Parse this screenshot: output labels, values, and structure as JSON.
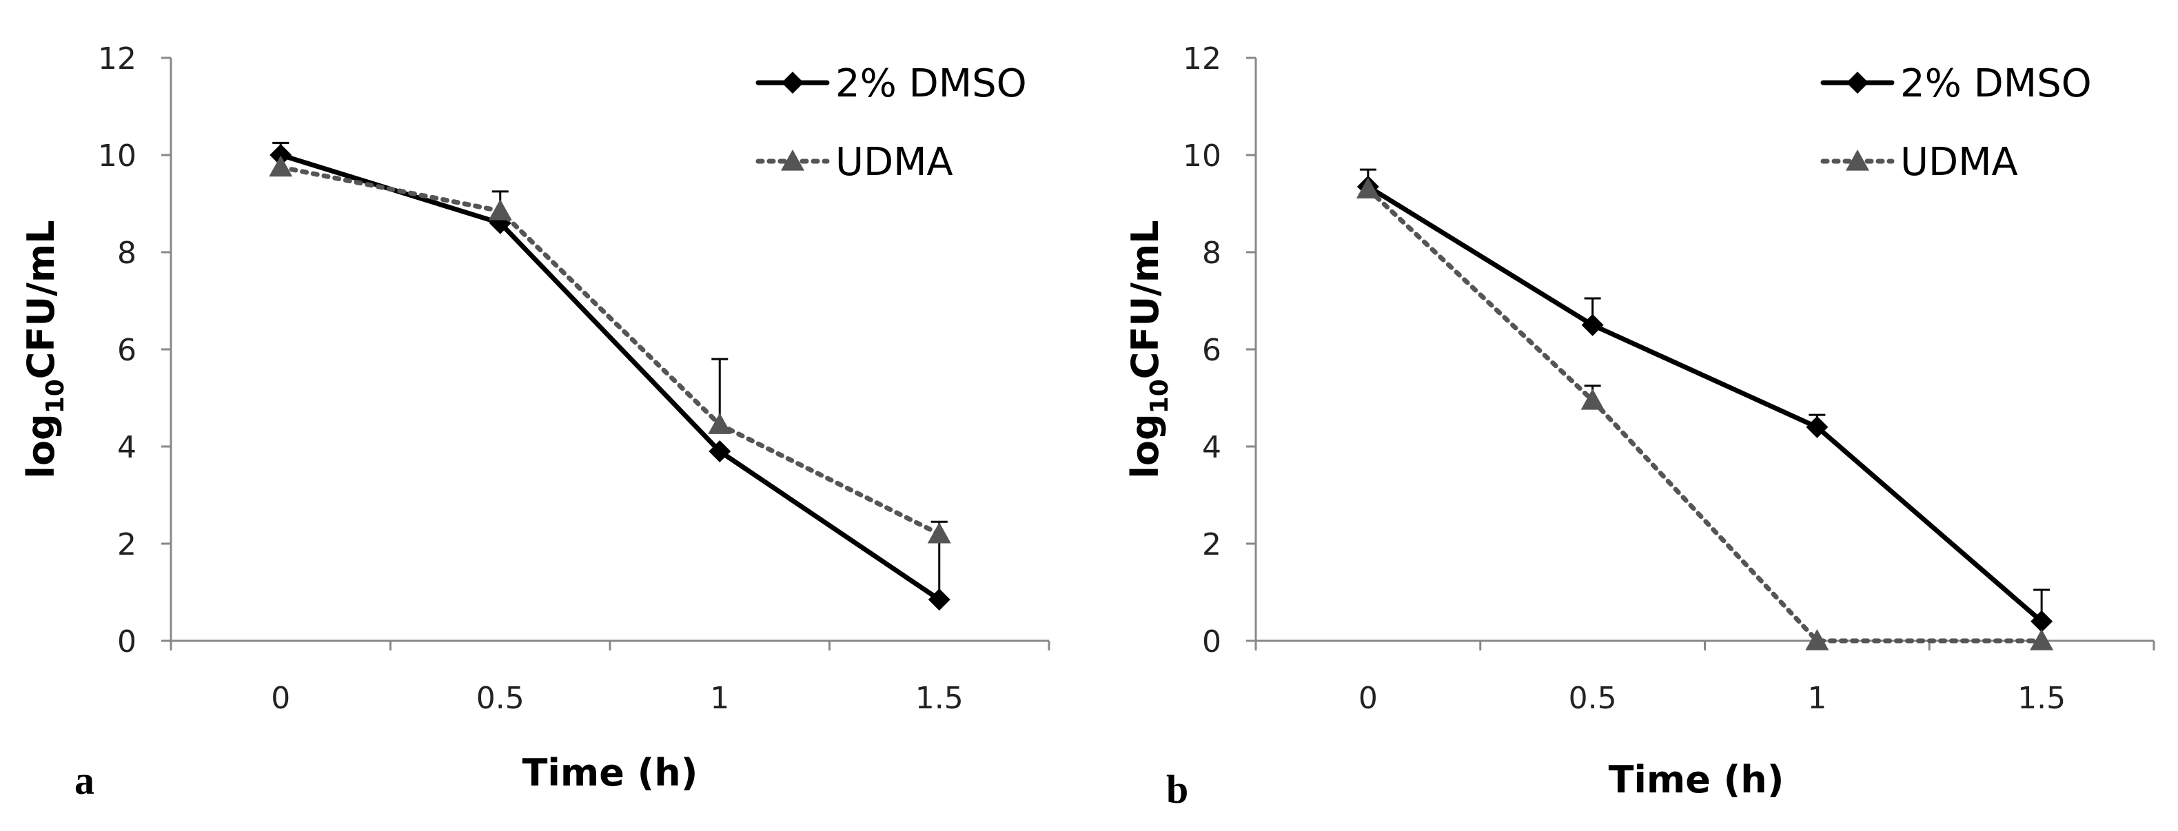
{
  "chart_data": [
    {
      "type": "line",
      "panel_label": "a",
      "xlabel": "Time (h)",
      "ylabel": {
        "prefix": "log",
        "subscript": "10",
        "suffix": "CFU/mL"
      },
      "categories": [
        "0",
        "0.5",
        "1",
        "1.5"
      ],
      "ylim": [
        0,
        12
      ],
      "yticks": [
        "0",
        "2",
        "4",
        "6",
        "8",
        "10",
        "12"
      ],
      "grid": false,
      "legend_position": "top-right",
      "series": [
        {
          "name": "2% DMSO",
          "marker": "diamond",
          "line": "solid",
          "color": "#000000",
          "values": [
            10.0,
            8.6,
            3.9,
            0.85
          ],
          "error": [
            0.25,
            0.1,
            0.0,
            0.0
          ]
        },
        {
          "name": "UDMA",
          "marker": "triangle",
          "line": "dotted",
          "color": "#555555",
          "values": [
            9.75,
            8.85,
            4.45,
            2.2
          ],
          "error": [
            0.0,
            0.4,
            1.35,
            0.25
          ],
          "error_down": [
            0,
            0,
            0,
            1.35
          ]
        }
      ]
    },
    {
      "type": "line",
      "panel_label": "b",
      "xlabel": "Time (h)",
      "ylabel": {
        "prefix": "log",
        "subscript": "10",
        "suffix": "CFU/mL"
      },
      "categories": [
        "0",
        "0.5",
        "1",
        "1.5"
      ],
      "ylim": [
        0,
        12
      ],
      "yticks": [
        "0",
        "2",
        "4",
        "6",
        "8",
        "10",
        "12"
      ],
      "grid": false,
      "legend_position": "top-right",
      "series": [
        {
          "name": "2% DMSO",
          "marker": "diamond",
          "line": "solid",
          "color": "#000000",
          "values": [
            9.35,
            6.5,
            4.4,
            0.4
          ],
          "error": [
            0.35,
            0.55,
            0.25,
            0.65
          ]
        },
        {
          "name": "UDMA",
          "marker": "triangle",
          "line": "dotted",
          "color": "#555555",
          "values": [
            9.3,
            4.95,
            0.0,
            0.0
          ],
          "error": [
            0.0,
            0.3,
            0.0,
            0.0
          ]
        }
      ]
    }
  ]
}
